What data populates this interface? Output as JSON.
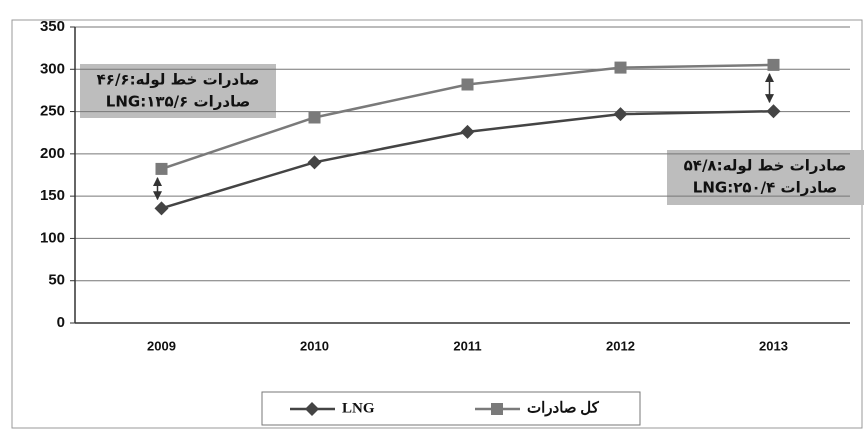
{
  "chart_data": {
    "type": "line",
    "categories": [
      "2009",
      "2010",
      "2011",
      "2012",
      "2013"
    ],
    "series": [
      {
        "name": "LNG",
        "color": "#444444",
        "marker": "diamond",
        "values": [
          135.6,
          190,
          226,
          247,
          250.4
        ]
      },
      {
        "name": "کل صادرات",
        "color": "#7a7a7a",
        "marker": "square",
        "values": [
          182.2,
          243,
          282,
          302,
          305.2
        ]
      }
    ],
    "ylim": [
      0,
      350
    ],
    "yticks": [
      0,
      50,
      100,
      150,
      200,
      250,
      300,
      350
    ],
    "grid": true,
    "annotations": [
      [
        "صادرات خط لوله:۴۶/۶",
        "صادرات LNG:۱۳۵/۶"
      ],
      [
        "صادرات خط لوله:۵۴/۸",
        "صادرات LNG:۲۵۰/۴"
      ]
    ]
  }
}
